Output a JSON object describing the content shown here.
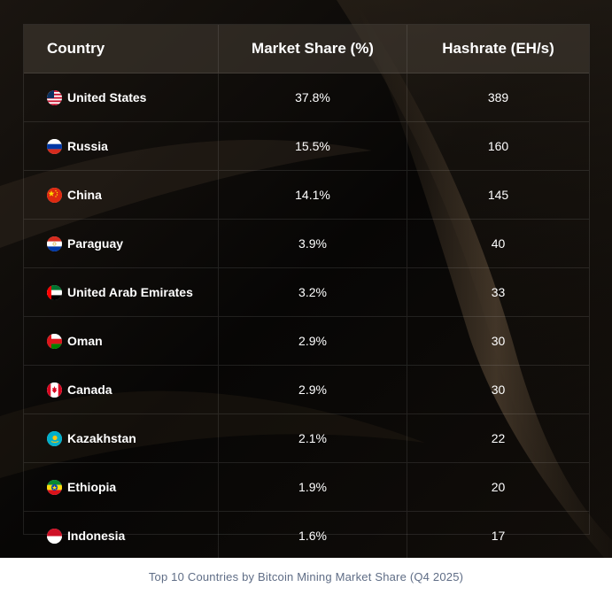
{
  "chart_data": {
    "type": "table",
    "columns": [
      "Country",
      "Market Share (%)",
      "Hashrate (EH/s)"
    ],
    "rows": [
      {
        "country": "United States",
        "flag": "us-flag-icon",
        "share": "37.8%",
        "hashrate": "389"
      },
      {
        "country": "Russia",
        "flag": "ru-flag-icon",
        "share": "15.5%",
        "hashrate": "160"
      },
      {
        "country": "China",
        "flag": "cn-flag-icon",
        "share": "14.1%",
        "hashrate": "145"
      },
      {
        "country": "Paraguay",
        "flag": "py-flag-icon",
        "share": "3.9%",
        "hashrate": "40"
      },
      {
        "country": "United Arab Emirates",
        "flag": "ae-flag-icon",
        "share": "3.2%",
        "hashrate": "33"
      },
      {
        "country": "Oman",
        "flag": "om-flag-icon",
        "share": "2.9%",
        "hashrate": "30"
      },
      {
        "country": "Canada",
        "flag": "ca-flag-icon",
        "share": "2.9%",
        "hashrate": "30"
      },
      {
        "country": "Kazakhstan",
        "flag": "kz-flag-icon",
        "share": "2.1%",
        "hashrate": "22"
      },
      {
        "country": "Ethiopia",
        "flag": "et-flag-icon",
        "share": "1.9%",
        "hashrate": "20"
      },
      {
        "country": "Indonesia",
        "flag": "id-flag-icon",
        "share": "1.6%",
        "hashrate": "17"
      }
    ],
    "caption": "Top 10 Countries by Bitcoin Mining Market Share (Q4 2025)"
  },
  "colors": {
    "background": "#0a0806",
    "header_bg": "#3d362e",
    "text": "#ffffff",
    "caption": "#5f6d86"
  }
}
